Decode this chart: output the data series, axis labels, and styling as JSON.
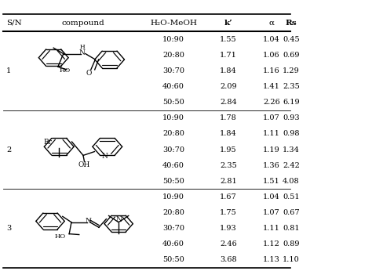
{
  "header": [
    "S/N",
    "compound",
    "H₂O-MeOH",
    "k’",
    "α",
    "Rs"
  ],
  "data": [
    {
      "sn": "1",
      "rows": [
        [
          "10:90",
          "1.55",
          "1.04",
          "0.45"
        ],
        [
          "20:80",
          "1.71",
          "1.06",
          "0.69"
        ],
        [
          "30:70",
          "1.84",
          "1.16",
          "1.29"
        ],
        [
          "40:60",
          "2.09",
          "1.41",
          "2.35"
        ],
        [
          "50:50",
          "2.84",
          "2.26",
          "6.19"
        ]
      ]
    },
    {
      "sn": "2",
      "rows": [
        [
          "10:90",
          "1.78",
          "1.07",
          "0.93"
        ],
        [
          "20:80",
          "1.84",
          "1.11",
          "0.98"
        ],
        [
          "30:70",
          "1.95",
          "1.19",
          "1.34"
        ],
        [
          "40:60",
          "2.35",
          "1.36",
          "2.42"
        ],
        [
          "50:50",
          "2.81",
          "1.51",
          "4.08"
        ]
      ]
    },
    {
      "sn": "3",
      "rows": [
        [
          "10:90",
          "1.67",
          "1.04",
          "0.51"
        ],
        [
          "20:80",
          "1.75",
          "1.07",
          "0.67"
        ],
        [
          "30:70",
          "1.93",
          "1.11",
          "0.81"
        ],
        [
          "40:60",
          "2.46",
          "1.12",
          "0.89"
        ],
        [
          "50:50",
          "3.68",
          "1.13",
          "1.10"
        ]
      ]
    }
  ],
  "bg_color": "#ffffff",
  "font_size": 7.0,
  "header_font_size": 7.5
}
